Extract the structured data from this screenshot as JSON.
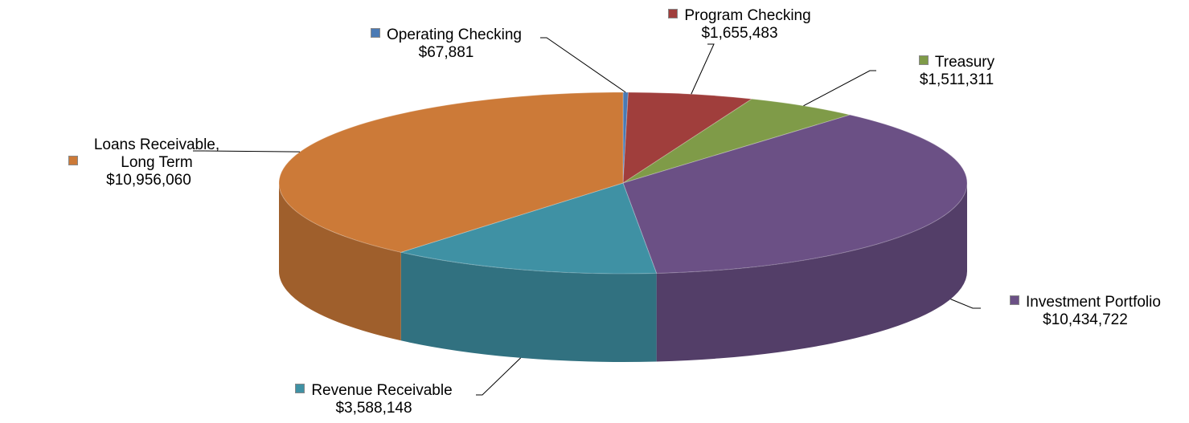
{
  "chart_data": {
    "type": "pie3d",
    "categories": [
      "Operating Checking",
      "Program Checking",
      "Treasury",
      "Investment Portfolio",
      "Revenue Receivable",
      "Loans Receivable, Long Term"
    ],
    "values": [
      67881,
      1655483,
      1511311,
      10434722,
      3588148,
      10956060
    ],
    "value_labels": [
      "$67,881",
      "$1,655,483",
      "$1,511,311",
      "$10,434,722",
      "$3,588,148",
      "$10,956,060"
    ],
    "colors": [
      "#4a7ab4",
      "#a03e3c",
      "#7f9b48",
      "#6b5085",
      "#3f91a4",
      "#cc7a38"
    ]
  }
}
